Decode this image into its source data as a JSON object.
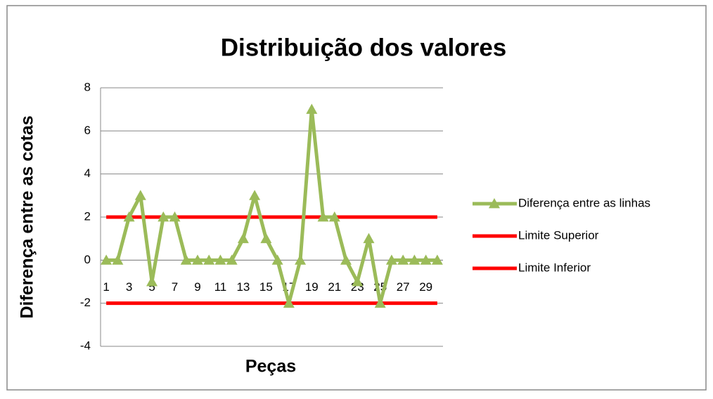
{
  "chart_data": {
    "type": "line",
    "title": "Distribuição dos valores",
    "x_label": "Peças",
    "y_label": "Diferença entre as cotas",
    "categories": [
      1,
      null,
      3,
      null,
      5,
      null,
      7,
      null,
      9,
      null,
      11,
      null,
      13,
      null,
      15,
      null,
      17,
      null,
      19,
      null,
      21,
      null,
      23,
      null,
      25,
      null,
      27,
      null,
      29,
      null
    ],
    "series": [
      {
        "name": "Diferença entre as linhas",
        "color": "#9bbb59",
        "marker": "triangle",
        "values": [
          0,
          0,
          2,
          3,
          -1,
          2,
          2,
          0,
          0,
          0,
          0,
          0,
          1,
          3,
          1,
          0,
          -2,
          0,
          7,
          2,
          2,
          0,
          -1,
          1,
          -2,
          0,
          0,
          0,
          0,
          0
        ]
      },
      {
        "name": "Limite Superior",
        "color": "#ff0000",
        "values": [
          2,
          2,
          2,
          2,
          2,
          2,
          2,
          2,
          2,
          2,
          2,
          2,
          2,
          2,
          2,
          2,
          2,
          2,
          2,
          2,
          2,
          2,
          2,
          2,
          2,
          2,
          2,
          2,
          2,
          2
        ]
      },
      {
        "name": "Limite Inferior",
        "color": "#ff0000",
        "values": [
          -2,
          -2,
          -2,
          -2,
          -2,
          -2,
          -2,
          -2,
          -2,
          -2,
          -2,
          -2,
          -2,
          -2,
          -2,
          -2,
          -2,
          -2,
          -2,
          -2,
          -2,
          -2,
          -2,
          -2,
          -2,
          -2,
          -2,
          -2,
          -2,
          -2
        ]
      }
    ],
    "ylim": [
      -4,
      8
    ],
    "yticks": [
      -4,
      -2,
      0,
      2,
      4,
      6,
      8
    ],
    "grid": true,
    "legend": "right"
  }
}
